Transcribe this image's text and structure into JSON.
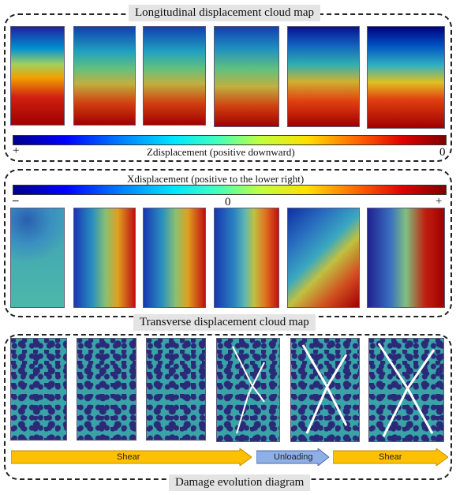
{
  "panels": {
    "longitudinal": {
      "title": "Longitudinal displacement cloud map",
      "colorbar_label": "Zdisplacement (positive downward)",
      "left_tick": "+",
      "right_tick": "0"
    },
    "transverse": {
      "title": "Transverse displacement cloud map",
      "colorbar_label": "Xdisplacement (positive to the lower right)",
      "left_tick": "–",
      "mid_tick": "0",
      "right_tick": "+"
    },
    "damage": {
      "title": "Damage evolution diagram",
      "arrows": [
        {
          "label": "Shear",
          "color": "#ffc000"
        },
        {
          "label": "Unloading",
          "color": "#8fb0e6"
        },
        {
          "label": "Shear",
          "color": "#ffc000"
        }
      ]
    }
  },
  "colors": {
    "damage_background": "#3aa3a7",
    "damage_particles": "#2a2a78",
    "crack": "#ffffff"
  }
}
